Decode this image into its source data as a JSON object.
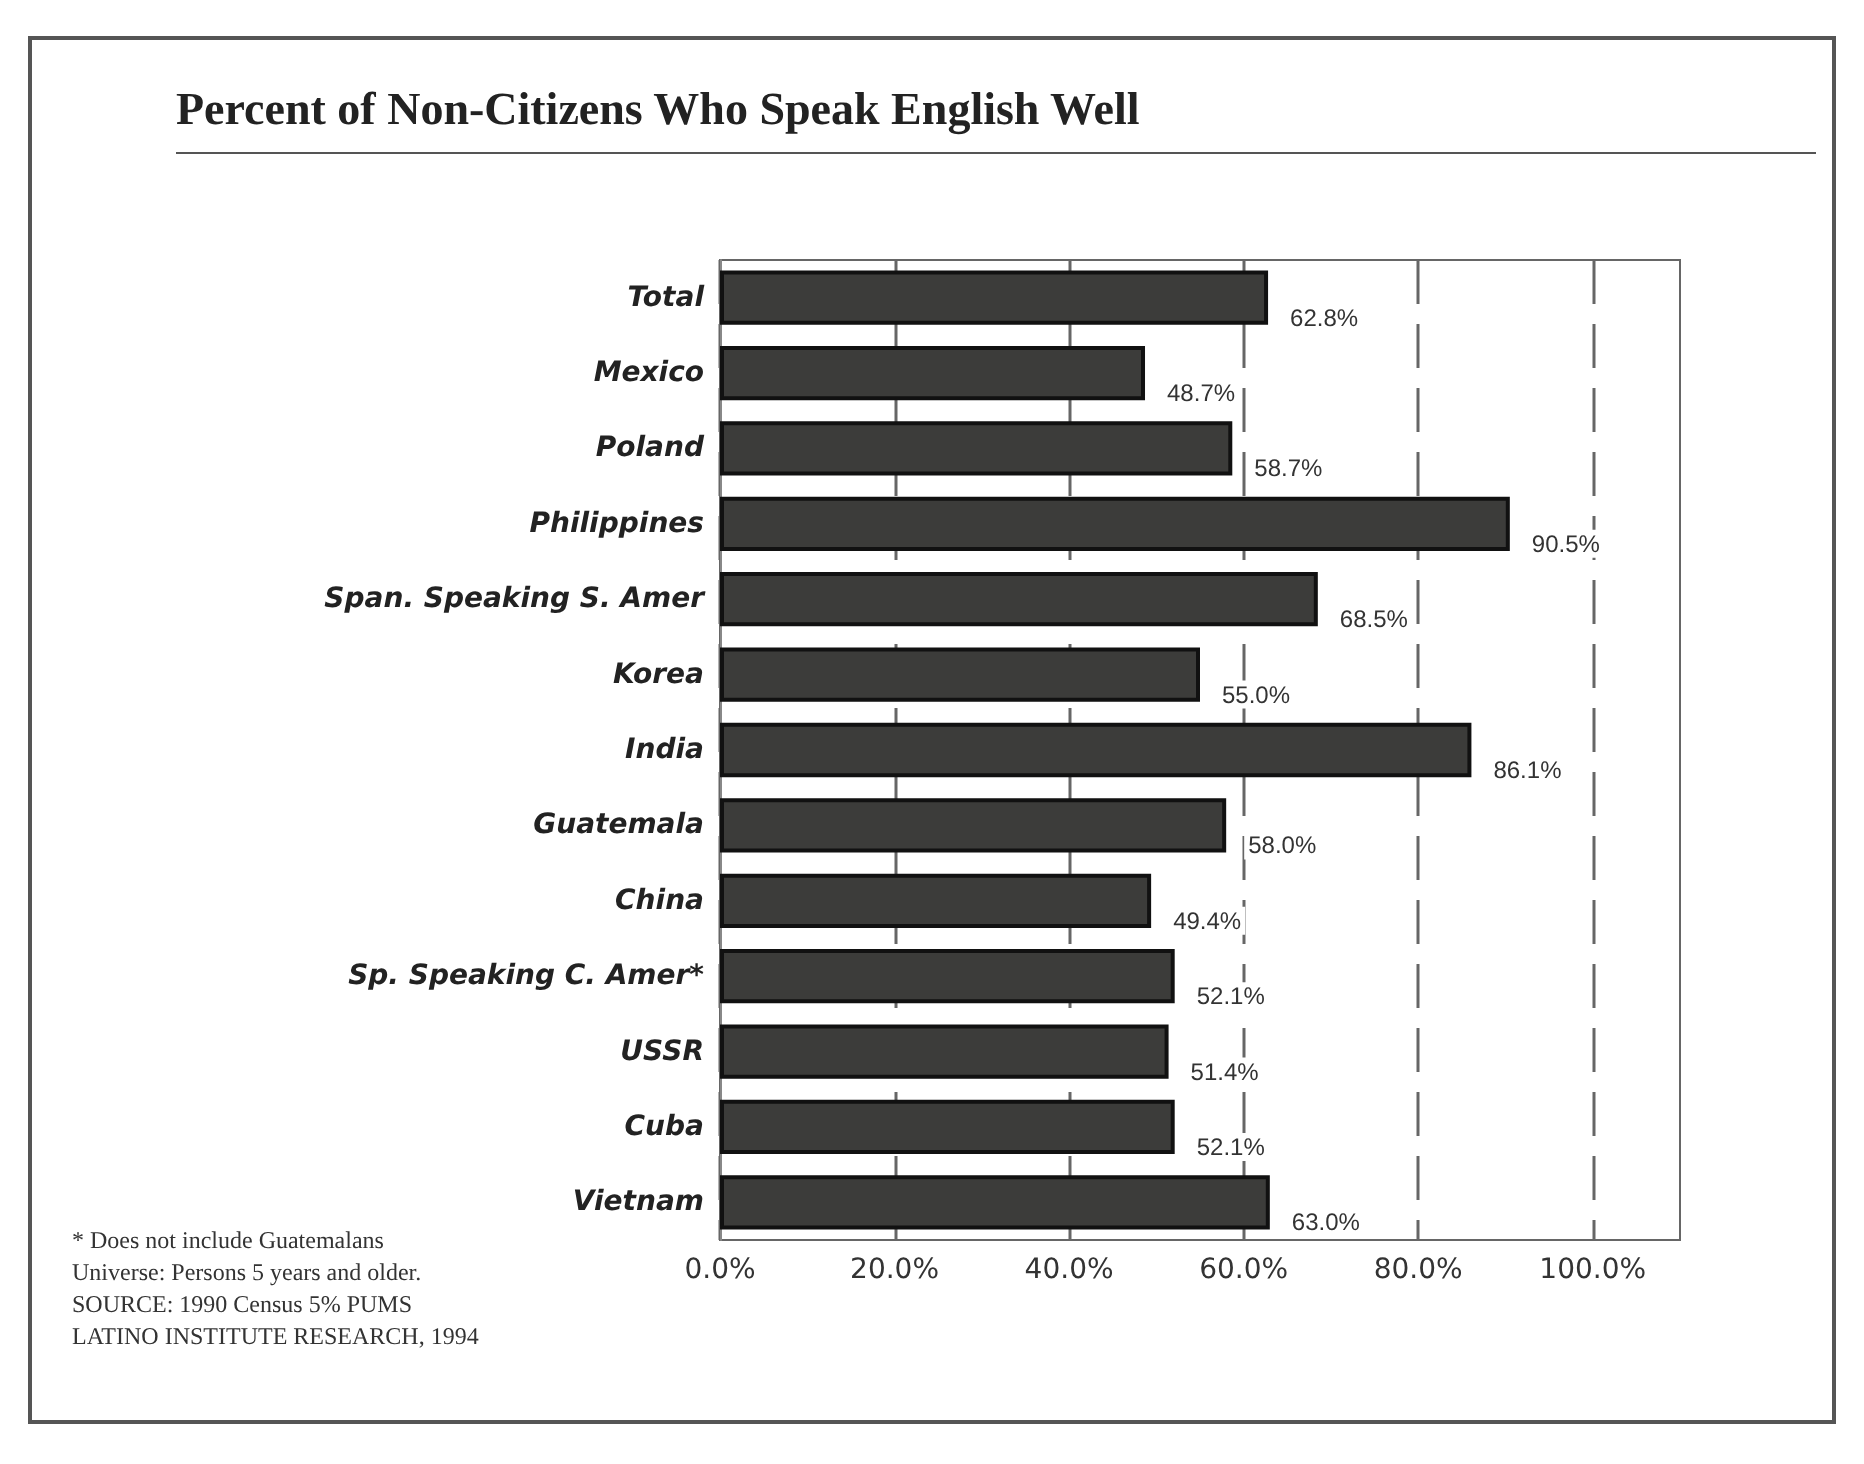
{
  "chart_data": {
    "type": "bar",
    "orientation": "horizontal",
    "title": "Percent of Non-Citizens Who Speak English Well",
    "categories": [
      "Total",
      "Mexico",
      "Poland",
      "Philippines",
      "Span. Speaking S. Amer",
      "Korea",
      "India",
      "Guatemala",
      "China",
      "Sp. Speaking C. Amer*",
      "USSR",
      "Cuba",
      "Vietnam"
    ],
    "values": [
      62.8,
      48.7,
      58.7,
      90.5,
      68.5,
      55.0,
      86.1,
      58.0,
      49.4,
      52.1,
      51.4,
      52.1,
      63.0
    ],
    "value_labels": [
      "62.8%",
      "48.7%",
      "58.7%",
      "90.5%",
      "68.5%",
      "55.0%",
      "86.1%",
      "58.0%",
      "49.4%",
      "52.1%",
      "51.4%",
      "52.1%",
      "63.0%"
    ],
    "color": "#3c3c3a",
    "xlim": [
      0,
      110
    ],
    "xticks": [
      {
        "value": 0,
        "label": "0.0%"
      },
      {
        "value": 20,
        "label": "20.0%"
      },
      {
        "value": 40,
        "label": "40.0%"
      },
      {
        "value": 60,
        "label": "60.0%"
      },
      {
        "value": 80,
        "label": "80.0%"
      },
      {
        "value": 100,
        "label": "100.0%"
      }
    ],
    "grid": "x",
    "annotations": [
      "* Does not include Guatemalans",
      "Universe:  Persons 5 years and older.",
      "SOURCE:  1990 Census 5% PUMS",
      "LATINO INSTITUTE RESEARCH, 1994"
    ]
  }
}
